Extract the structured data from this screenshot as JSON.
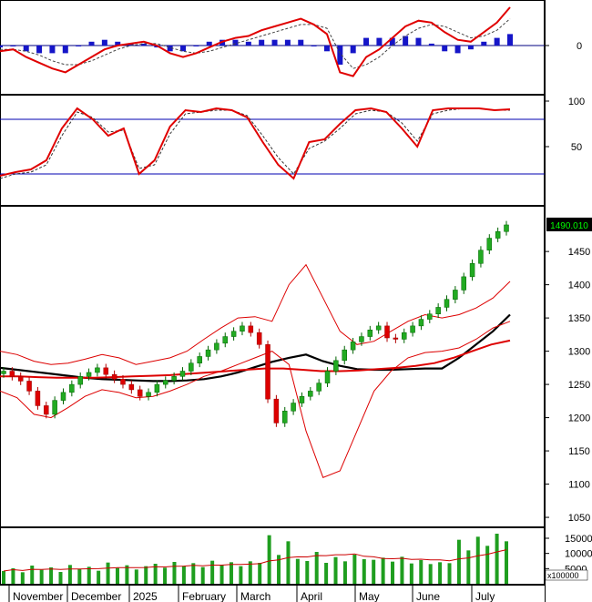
{
  "chart_data": [
    {
      "type": "line",
      "panel": "macd",
      "y_ticks": [
        "0"
      ],
      "series": [
        {
          "values": [
            -3,
            -2,
            -6,
            -9,
            -12,
            -14,
            -10,
            -6,
            -2,
            0,
            1,
            2,
            0,
            -4,
            -6,
            -4,
            -1,
            2,
            4,
            5,
            8,
            10,
            12,
            14,
            11,
            6,
            -14,
            -16,
            -6,
            -2,
            4,
            10,
            13,
            12,
            7,
            3,
            2,
            7,
            12,
            20
          ]
        },
        {
          "values": [
            -2,
            -2,
            -3,
            -5,
            -8,
            -10,
            -10,
            -8,
            -5,
            -2,
            0,
            1,
            1,
            -1,
            -3,
            -4,
            -3,
            -1,
            1,
            3,
            5,
            7,
            9,
            11,
            11,
            9,
            -4,
            -12,
            -10,
            -6,
            0,
            5,
            9,
            11,
            10,
            7,
            4,
            5,
            8,
            14
          ]
        },
        {
          "type": "histogram",
          "values": [
            -1,
            0,
            -3,
            -4,
            -4,
            -4,
            0,
            2,
            3,
            2,
            1,
            1,
            -1,
            -3,
            -3,
            0,
            2,
            3,
            3,
            2,
            3,
            3,
            3,
            3,
            0,
            -3,
            -10,
            -4,
            4,
            4,
            4,
            5,
            4,
            1,
            -3,
            -4,
            -2,
            2,
            4,
            6
          ]
        }
      ]
    },
    {
      "type": "line",
      "panel": "stochastic",
      "y_ticks": [
        "100",
        "50"
      ],
      "ylim": [
        0,
        100
      ],
      "reference_lines": [
        80,
        20
      ],
      "series": [
        {
          "values": [
            18,
            22,
            25,
            35,
            70,
            92,
            80,
            62,
            70,
            20,
            35,
            72,
            90,
            88,
            92,
            90,
            82,
            55,
            30,
            15,
            55,
            58,
            75,
            90,
            92,
            88,
            70,
            50,
            90,
            92,
            92,
            92,
            90,
            91
          ]
        },
        {
          "values": [
            15,
            20,
            22,
            30,
            62,
            88,
            82,
            66,
            68,
            26,
            30,
            64,
            86,
            88,
            90,
            90,
            84,
            62,
            38,
            20,
            48,
            56,
            70,
            86,
            90,
            88,
            76,
            56,
            86,
            90,
            92,
            92,
            90,
            90
          ]
        }
      ]
    },
    {
      "type": "candlestick",
      "panel": "price",
      "y_ticks": [
        "1450",
        "1400",
        "1350",
        "1300",
        "1250",
        "1200",
        "1150",
        "1100",
        "1050"
      ],
      "last_value": "1490.010",
      "ylim": [
        1035,
        1505
      ],
      "x_labels": [
        "November",
        "December",
        "2025",
        "February",
        "March",
        "April",
        "May",
        "June",
        "July"
      ],
      "close": [
        1270,
        1262,
        1255,
        1240,
        1218,
        1205,
        1226,
        1238,
        1250,
        1262,
        1268,
        1275,
        1265,
        1258,
        1250,
        1242,
        1232,
        1238,
        1250,
        1256,
        1262,
        1270,
        1282,
        1292,
        1302,
        1312,
        1322,
        1330,
        1338,
        1328,
        1310,
        1228,
        1192,
        1210,
        1222,
        1232,
        1240,
        1252,
        1270,
        1286,
        1302,
        1314,
        1322,
        1332,
        1338,
        1320,
        1318,
        1328,
        1338,
        1348,
        1356,
        1366,
        1378,
        1392,
        1412,
        1432,
        1452,
        1470,
        1480,
        1490
      ],
      "lines": [
        {
          "color": "#000000",
          "values": [
            1275,
            1272,
            1269,
            1266,
            1263,
            1260,
            1258,
            1257,
            1256,
            1255,
            1255,
            1256,
            1258,
            1262,
            1268,
            1276,
            1284,
            1290,
            1295,
            1285,
            1278,
            1273,
            1272,
            1272,
            1273,
            1274,
            1274,
            1290,
            1310,
            1330,
            1355
          ]
        },
        {
          "color": "#dd0000",
          "values": [
            1262,
            1262,
            1261,
            1260,
            1260,
            1260,
            1261,
            1262,
            1263,
            1264,
            1266,
            1268,
            1270,
            1272,
            1274,
            1274,
            1272,
            1270,
            1270,
            1271,
            1273,
            1275,
            1278,
            1282,
            1290,
            1300,
            1310,
            1316
          ]
        },
        {
          "color": "#dd0000",
          "values": [
            1300,
            1295,
            1285,
            1280,
            1282,
            1288,
            1295,
            1290,
            1280,
            1285,
            1290,
            1300,
            1318,
            1335,
            1350,
            1352,
            1345,
            1400,
            1430,
            1380,
            1330,
            1310,
            1315,
            1330,
            1345,
            1355,
            1350,
            1355,
            1365,
            1380,
            1405
          ]
        },
        {
          "color": "#dd0000",
          "values": [
            1240,
            1230,
            1205,
            1200,
            1215,
            1232,
            1242,
            1238,
            1230,
            1232,
            1240,
            1250,
            1262,
            1270,
            1280,
            1290,
            1300,
            1280,
            1180,
            1110,
            1120,
            1180,
            1240,
            1270,
            1290,
            1298,
            1300,
            1305,
            1318,
            1335,
            1345
          ]
        }
      ]
    },
    {
      "type": "bar",
      "panel": "volume",
      "y_ticks": [
        "15000",
        "10000",
        "5000"
      ],
      "unit_label": "x100000",
      "ylim": [
        0,
        18000
      ],
      "values": [
        4200,
        5100,
        3800,
        6000,
        4600,
        5400,
        3900,
        6200,
        4800,
        5600,
        4300,
        7000,
        5200,
        6100,
        4700,
        5800,
        6600,
        5300,
        7200,
        5900,
        6800,
        5500,
        7600,
        6200,
        7100,
        5800,
        7400,
        6900,
        16000,
        9500,
        14000,
        8200,
        7500,
        10500,
        6900,
        8800,
        7400,
        9600,
        8100,
        7900,
        8600,
        7300,
        8900,
        6700,
        7800,
        6500,
        7100,
        6800,
        14500,
        11000,
        15500,
        12500,
        16500,
        14000
      ]
    }
  ]
}
